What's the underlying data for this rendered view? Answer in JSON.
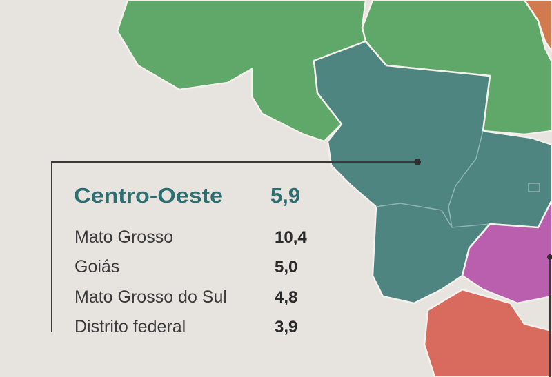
{
  "region": {
    "name": "Centro-Oeste",
    "value": "5,9"
  },
  "states": [
    {
      "name": "Mato Grosso",
      "value": "10,4"
    },
    {
      "name": "Goiás",
      "value": "5,0"
    },
    {
      "name": "Mato Grosso do Sul",
      "value": "4,8"
    },
    {
      "name": "Distrito federal",
      "value": "3,9"
    }
  ]
}
